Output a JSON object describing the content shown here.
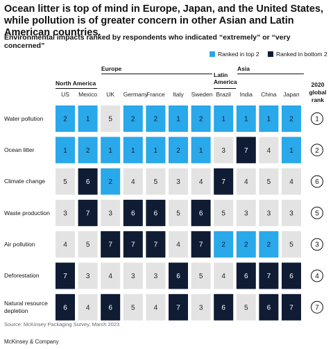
{
  "title": "Ocean litter is top of mind in Europe, Japan, and the United States, while pollution is of greater concern in other Asian and Latin American countries.",
  "subtitle": "Environmental impacts ranked by respondents who indicated “extremely” or “very concerned”",
  "legend": {
    "top": "Ranked in top 2",
    "bottom": "Ranked in bottom 2"
  },
  "colors": {
    "top2": "#29a8ea",
    "bottom2": "#0f1c33",
    "neutral": "#e3e3e3"
  },
  "regions": [
    "North America",
    "Europe",
    "Latin America",
    "Asia"
  ],
  "global_rank_header": "2020 global rank",
  "source": "Source: McKinsey Packaging Survey, March 2023",
  "brand": "McKinsey & Company",
  "chart_data": {
    "type": "table",
    "columns": [
      "US",
      "Mexico",
      "UK",
      "Germany",
      "France",
      "Italy",
      "Sweden",
      "Brazil",
      "India",
      "China",
      "Japan"
    ],
    "column_regions": [
      "North America",
      "North America",
      "Europe",
      "Europe",
      "Europe",
      "Europe",
      "Europe",
      "Latin America",
      "Asia",
      "Asia",
      "Asia"
    ],
    "rows": [
      {
        "label": "Water pollution",
        "values": [
          2,
          1,
          5,
          2,
          2,
          1,
          2,
          1,
          1,
          1,
          2
        ],
        "global_rank": 1
      },
      {
        "label": "Ocean litter",
        "values": [
          1,
          2,
          1,
          1,
          1,
          2,
          1,
          3,
          7,
          4,
          1
        ],
        "global_rank": 2
      },
      {
        "label": "Climate change",
        "values": [
          5,
          6,
          2,
          4,
          5,
          3,
          4,
          7,
          4,
          5,
          4
        ],
        "global_rank": 6
      },
      {
        "label": "Waste production",
        "values": [
          3,
          7,
          3,
          6,
          6,
          5,
          6,
          5,
          3,
          3,
          3
        ],
        "global_rank": 5
      },
      {
        "label": "Air pollution",
        "values": [
          4,
          5,
          7,
          7,
          7,
          4,
          7,
          2,
          2,
          2,
          5
        ],
        "global_rank": 3
      },
      {
        "label": "Deforestation",
        "values": [
          7,
          3,
          4,
          3,
          3,
          6,
          5,
          4,
          6,
          7,
          6
        ],
        "global_rank": 4
      },
      {
        "label": "Natural resource depletion",
        "values": [
          6,
          4,
          6,
          5,
          4,
          7,
          3,
          6,
          5,
          6,
          7
        ],
        "global_rank": 7
      }
    ]
  }
}
